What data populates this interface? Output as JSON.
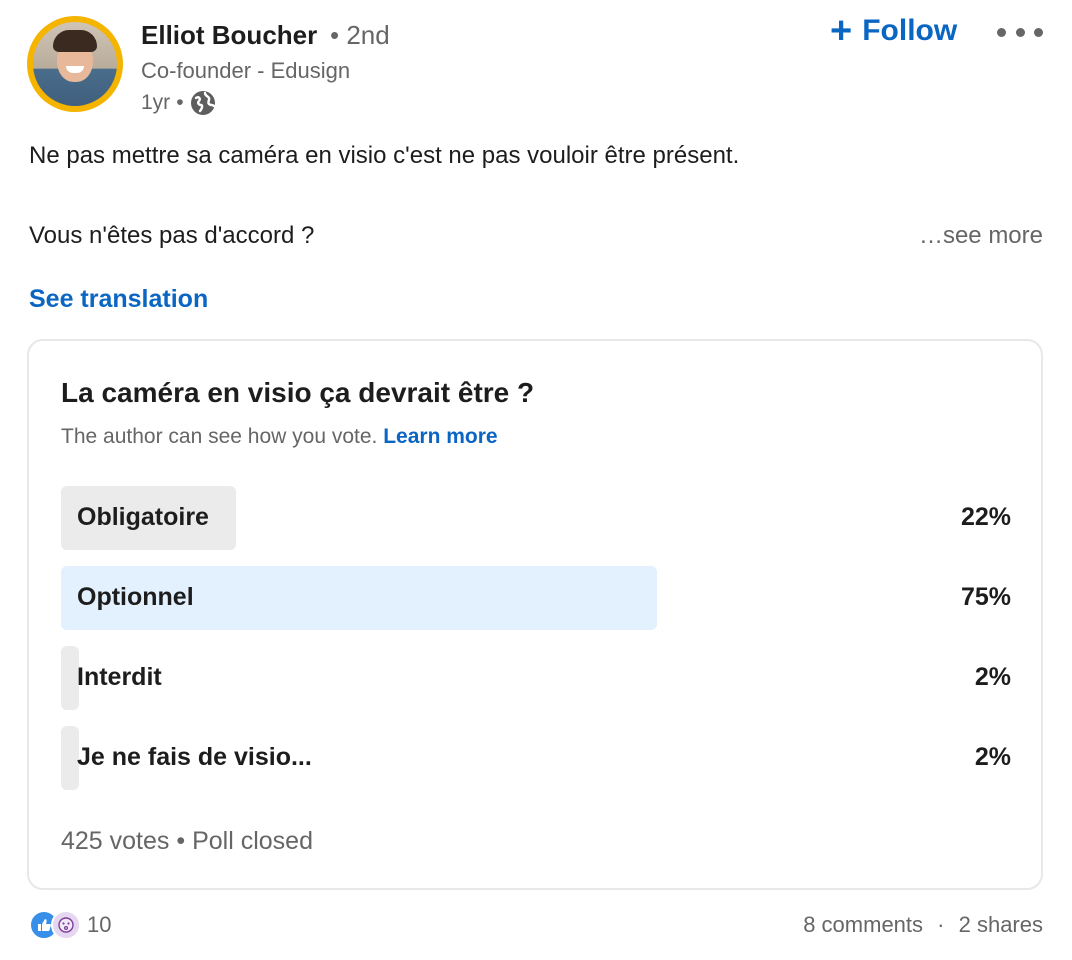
{
  "author": {
    "name": "Elliot Boucher",
    "degree": "• 2nd",
    "headline": "Co-founder - Edusign",
    "time": "1yr",
    "separator": "•"
  },
  "actions": {
    "follow_label": "Follow",
    "follow_icon": "plus-icon",
    "more_icon": "more-options-icon"
  },
  "post": {
    "line1": "Ne pas mettre sa caméra en visio c'est ne pas vouloir être présent.",
    "line2": "Vous n'êtes pas d'accord ?",
    "see_more": "…see more",
    "see_translation": "See translation"
  },
  "poll": {
    "question": "La caméra en visio ça devrait être ?",
    "note": "The author can see how you vote.",
    "learn_more": "Learn more",
    "options": [
      {
        "label": "Obligatoire",
        "percent_text": "22%",
        "percent": 22,
        "fill_color": "#ebebeb"
      },
      {
        "label": "Optionnel",
        "percent_text": "75%",
        "percent": 75,
        "fill_color": "#e3f0fd"
      },
      {
        "label": "Interdit",
        "percent_text": "2%",
        "percent": 2,
        "fill_color": "#ebebeb"
      },
      {
        "label": "Je ne fais de visio...",
        "percent_text": "2%",
        "percent": 2,
        "fill_color": "#ebebeb"
      }
    ],
    "votes": "425 votes",
    "status": "Poll closed"
  },
  "social": {
    "reaction_icons": [
      "like-icon",
      "curious-icon"
    ],
    "reaction_count": "10",
    "comments": "8 comments",
    "shares": "2 shares"
  },
  "colors": {
    "brand": "#0a66c2",
    "avatar_ring": "#f4b400",
    "text_primary": "#1d1d1d",
    "text_secondary": "#666666"
  }
}
